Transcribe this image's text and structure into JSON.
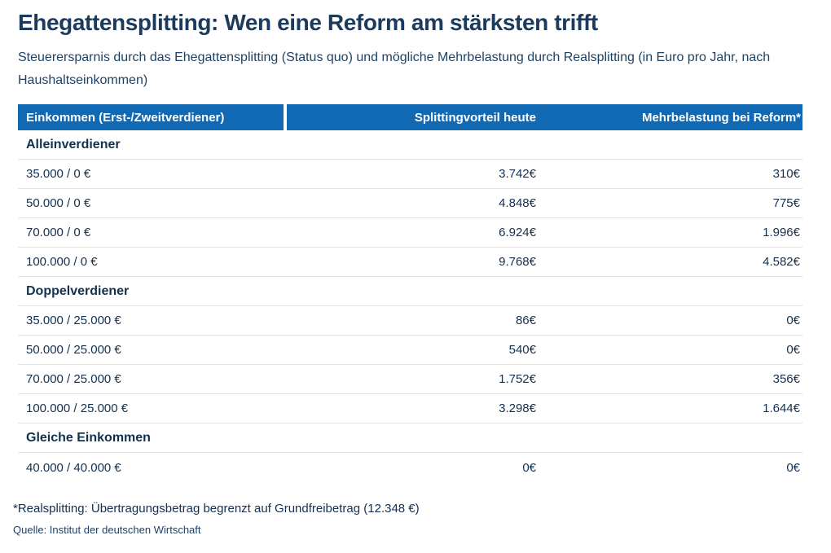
{
  "colors": {
    "header_bg": "#1169b4",
    "title_navy": "#1b3a5c",
    "text_navy": "#14304f",
    "subtitle_navy": "#1f4264",
    "divider": "#d6e7f1"
  },
  "chart_data": {
    "type": "table",
    "title": "Ehegattensplitting: Wen eine Reform am stärksten trifft",
    "subtitle": "Steuerersparnis durch das Ehegattensplitting (Status quo) und mögliche Mehrbelastung durch Realsplitting (in Euro pro Jahr, nach Haushaltseinkommen)",
    "columns": [
      "Einkommen (Erst-/Zweitverdiener)",
      "Splittingvorteil heute",
      "Mehrbelastung bei Reform*"
    ],
    "sections": [
      {
        "label": "Alleinverdiener",
        "rows": [
          {
            "income": "35.000 / 0 €",
            "advantage": "3.742€",
            "burden": "310€"
          },
          {
            "income": "50.000 / 0 €",
            "advantage": "4.848€",
            "burden": "775€"
          },
          {
            "income": "70.000 / 0 €",
            "advantage": "6.924€",
            "burden": "1.996€"
          },
          {
            "income": "100.000 / 0 €",
            "advantage": "9.768€",
            "burden": "4.582€"
          }
        ]
      },
      {
        "label": "Doppelverdiener",
        "rows": [
          {
            "income": "35.000 / 25.000 €",
            "advantage": "86€",
            "burden": "0€"
          },
          {
            "income": "50.000 / 25.000 €",
            "advantage": "540€",
            "burden": "0€"
          },
          {
            "income": "70.000 / 25.000 €",
            "advantage": "1.752€",
            "burden": "356€"
          },
          {
            "income": "100.000 / 25.000 €",
            "advantage": "3.298€",
            "burden": "1.644€"
          }
        ]
      },
      {
        "label": "Gleiche Einkommen",
        "rows": [
          {
            "income": "40.000 / 40.000 €",
            "advantage": "0€",
            "burden": "0€"
          }
        ]
      }
    ],
    "footnote": "*Realsplitting: Übertragungsbetrag begrenzt auf Grundfreibetrag (12.348 €)",
    "source": "Quelle: Institut der deutschen Wirtschaft"
  }
}
